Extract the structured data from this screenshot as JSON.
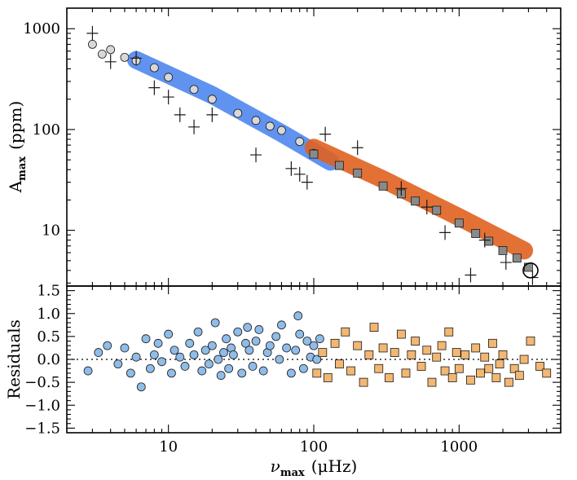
{
  "chart_data": [
    {
      "type": "scatter",
      "panel": "top",
      "xscale": "log",
      "yscale": "log",
      "xlim": [
        2,
        5000
      ],
      "ylim": [
        2.8,
        1600
      ],
      "ylabel": {
        "main": "A",
        "sub": "max",
        "unit": "(ppm)"
      },
      "yticks": [
        {
          "value": 10,
          "label": "10"
        },
        {
          "value": 100,
          "label": "100"
        },
        {
          "value": 1000,
          "label": "1000"
        }
      ],
      "trend_bands": [
        {
          "name": "",
          "color": "#4f87ee",
          "points": [
            [
              6,
              490
            ],
            [
              20,
              220
            ],
            [
              60,
              92
            ],
            [
              130,
              48
            ]
          ]
        },
        {
          "name": "",
          "color": "#e0621f",
          "points": [
            [
              100,
              66
            ],
            [
              300,
              32
            ],
            [
              1000,
              13.5
            ],
            [
              2800,
              6.3
            ]
          ]
        }
      ],
      "series": [
        {
          "name": "",
          "marker": "circle",
          "color": "#d8d8d8",
          "edge": "#1a1a1a",
          "x": [
            3,
            3.5,
            4,
            5,
            6,
            8,
            10,
            15,
            20,
            30,
            40,
            50,
            60,
            80,
            100
          ],
          "y": [
            700,
            560,
            620,
            520,
            480,
            410,
            330,
            250,
            200,
            145,
            123,
            108,
            98,
            76,
            58
          ]
        },
        {
          "name": "",
          "marker": "square",
          "color": "#8a8a8a",
          "edge": "#1a1a1a",
          "x": [
            100,
            150,
            200,
            300,
            400,
            500,
            700,
            1000,
            1300,
            1600,
            2000,
            2500,
            3000
          ],
          "y": [
            57,
            44,
            37,
            27.5,
            23,
            19.5,
            15.8,
            11.8,
            9.3,
            7.8,
            6.3,
            5.3,
            4.3
          ]
        },
        {
          "name": "",
          "marker": "cross",
          "color": "#1a1a1a",
          "x": [
            3,
            4,
            6,
            8,
            10,
            12,
            15,
            20,
            40,
            70,
            80,
            90
          ],
          "y": [
            900,
            470,
            510,
            260,
            210,
            140,
            106,
            140,
            56,
            41,
            36,
            30
          ]
        },
        {
          "name": "",
          "marker": "cross",
          "color": "#1a1a1a",
          "x": [
            120,
            200,
            400,
            600,
            800,
            1200,
            1500,
            2100,
            3200
          ],
          "y": [
            90,
            66,
            26,
            17,
            9.5,
            3.6,
            8,
            4.8,
            3.4
          ]
        }
      ],
      "highlight": {
        "marker": "open-circle",
        "x": 3100,
        "y": 4
      }
    },
    {
      "type": "scatter",
      "panel": "bottom",
      "xscale": "log",
      "xlim": [
        2,
        5000
      ],
      "ylim": [
        -1.6,
        1.6
      ],
      "xlabel": {
        "main": "ν",
        "sub": "max",
        "unit": "(μHz)"
      },
      "ylabel": "Residuals",
      "xticks": [
        {
          "value": 10,
          "label": "10"
        },
        {
          "value": 100,
          "label": "100"
        },
        {
          "value": 1000,
          "label": "1000"
        }
      ],
      "yticks": [
        {
          "value": -1.5,
          "label": "−1.5"
        },
        {
          "value": -1.0,
          "label": "−1.0"
        },
        {
          "value": -0.5,
          "label": "−0.5"
        },
        {
          "value": 0.0,
          "label": "0.0"
        },
        {
          "value": 0.5,
          "label": "0.5"
        },
        {
          "value": 1.0,
          "label": "1.0"
        },
        {
          "value": 1.5,
          "label": "1.5"
        }
      ],
      "reference_line": {
        "y": 0,
        "style": "dotted"
      },
      "series": [
        {
          "name": "",
          "marker": "circle",
          "color": "#8fbce8",
          "edge": "#1a1a1a",
          "x": [
            2.8,
            3.3,
            3.8,
            4.5,
            5,
            5.5,
            6,
            6.5,
            7,
            7.5,
            8,
            8.5,
            9,
            10,
            10.5,
            11,
            12,
            13,
            14,
            15,
            16,
            17,
            18,
            19,
            20,
            21,
            22,
            23,
            24,
            25,
            26,
            27,
            28,
            30,
            32,
            34,
            35,
            36,
            38,
            40,
            42,
            45,
            48,
            50,
            55,
            58,
            60,
            65,
            70,
            75,
            78,
            80,
            85,
            90,
            95,
            100,
            105,
            110
          ],
          "y": [
            -0.25,
            0.15,
            0.3,
            -0.1,
            0.25,
            -0.3,
            0.05,
            -0.6,
            0.45,
            -0.2,
            0.1,
            0.35,
            -0.05,
            0.55,
            -0.3,
            0.2,
            0.05,
            -0.15,
            0.35,
            0.1,
            0.6,
            -0.25,
            0.2,
            -0.1,
            0.3,
            0.8,
            0.0,
            -0.35,
            0.15,
            0.45,
            -0.2,
            0.25,
            0.1,
            0.6,
            -0.3,
            0.35,
            0.7,
            0.2,
            -0.15,
            0.4,
            0.65,
            -0.25,
            0.15,
            0.3,
            0.5,
            0.0,
            0.75,
            0.25,
            -0.3,
            0.2,
            0.95,
            0.55,
            -0.2,
            0.4,
            0.05,
            0.3,
            0.0,
            0.45
          ]
        },
        {
          "name": "",
          "marker": "square",
          "color": "#f2b772",
          "edge": "#1a1a1a",
          "x": [
            105,
            115,
            125,
            140,
            150,
            165,
            180,
            200,
            220,
            240,
            260,
            280,
            300,
            330,
            360,
            400,
            430,
            470,
            500,
            550,
            600,
            650,
            700,
            760,
            800,
            850,
            900,
            960,
            1000,
            1100,
            1200,
            1300,
            1400,
            1500,
            1600,
            1700,
            1800,
            1900,
            2000,
            2200,
            2400,
            2600,
            2800,
            3100,
            3600,
            4000
          ],
          "y": [
            -0.3,
            0.15,
            -0.4,
            0.35,
            -0.1,
            0.6,
            -0.25,
            0.3,
            -0.5,
            0.1,
            0.7,
            -0.2,
            0.25,
            -0.4,
            0.15,
            0.55,
            -0.3,
            0.1,
            0.4,
            -0.15,
            0.2,
            -0.5,
            0.05,
            0.3,
            -0.25,
            0.6,
            -0.4,
            0.15,
            -0.2,
            0.1,
            -0.45,
            0.25,
            -0.3,
            0.05,
            -0.2,
            0.35,
            -0.4,
            -0.1,
            0.1,
            -0.5,
            -0.2,
            -0.35,
            0.0,
            0.4,
            -0.15,
            -0.3
          ]
        }
      ]
    }
  ]
}
